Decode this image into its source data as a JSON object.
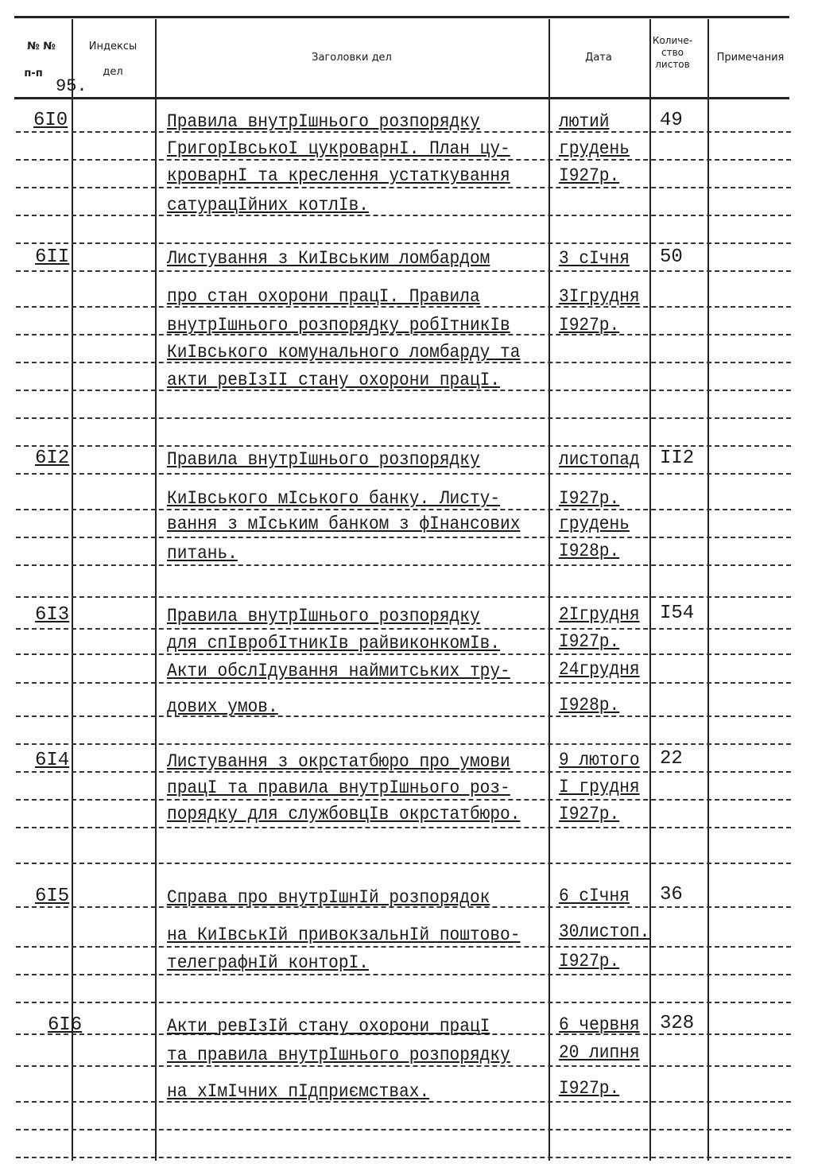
{
  "header": {
    "col_number": "№ №",
    "col_number_sub": "п-п",
    "page_number": "95.",
    "col_index": "Индексы",
    "col_index_sub": "дел",
    "col_title": "Заголовки дел",
    "col_date": "Дата",
    "col_count": "Количе-ство листов",
    "col_notes": "Примечания"
  },
  "entries": [
    {
      "number": "6I0",
      "title_lines": [
        "Правила внутрІшнього  розпорядку",
        "ГригорІвськоІ цукроварнІ. План цу-",
        "кроварнІ та креслення устаткування",
        "сатурацІйних котлІв."
      ],
      "date_lines": [
        "лютий",
        "грудень",
        "I927р."
      ],
      "count": "49"
    },
    {
      "number": "6II",
      "title_lines": [
        "Листування з КиІвським ломбардом",
        "про стан охорони працІ. Правила",
        "внутрІшнього розпорядку робІтникІв",
        "КиІвського комунального ломбарду та",
        "акти ревІзІІ стану охорони працІ."
      ],
      "date_lines": [
        "3 сІчня",
        "3Iгрудня",
        "I927р."
      ],
      "count": "50"
    },
    {
      "number": "6I2",
      "title_lines": [
        "Правила внутрІшнього  розпорядку",
        "КиІвського мІського банку. Листу-",
        "вання з мІським банком з фІнансових",
        "питань."
      ],
      "date_lines": [
        "листопад",
        "I927р.",
        "грудень",
        "I928р."
      ],
      "count": "II2"
    },
    {
      "number": "6I3",
      "title_lines": [
        "Правила внутрІшнього  розпорядку",
        "для спІвробІтникІв райвиконкомІв.",
        "Акти обслІдування наймитських тру-",
        "дових умов."
      ],
      "date_lines": [
        "2Iгрудня",
        "I927р.",
        "24грудня",
        "I928р."
      ],
      "count": "I54"
    },
    {
      "number": "6I4",
      "title_lines": [
        "Листування з окрстатбюро про умови",
        "працІ та правила внутрІшнього роз-",
        "порядку для службовцІв окрстатбюро."
      ],
      "date_lines": [
        "9 лютого",
        "I грудня",
        "I927р."
      ],
      "count": "22"
    },
    {
      "number": "6I5",
      "title_lines": [
        "Справа про внутрІшнІй  розпорядок",
        "на КиІвськІй привокзальнІй поштово-",
        "телеграфнІй конторІ."
      ],
      "date_lines": [
        "6 сІчня",
        "30листоп.",
        "I927р."
      ],
      "count": "36"
    },
    {
      "number": "6I6",
      "title_lines": [
        "Акти ревІзІй стану охорони працІ",
        "та правила внутрІшнього розпорядку",
        "на хІмІчних пІдприємствах."
      ],
      "date_lines": [
        "6 червня",
        "20 липня",
        "I927р."
      ],
      "count": "328"
    }
  ]
}
